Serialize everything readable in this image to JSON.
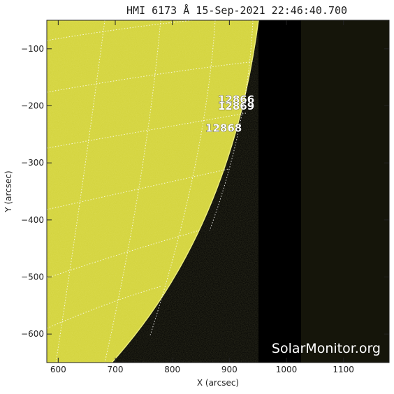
{
  "title": "HMI 6173 Å 15-Sep-2021 22:46:40.700",
  "x_axis": {
    "label": "X (arcsec)",
    "ticks": [
      600,
      700,
      800,
      900,
      1000,
      1100
    ],
    "range": [
      580,
      1180
    ]
  },
  "y_axis": {
    "label": "Y (arcsec)",
    "ticks": [
      -100,
      -200,
      -300,
      -400,
      -500,
      -600
    ],
    "range": [
      -650,
      -50
    ]
  },
  "regions": [
    {
      "number": "12866",
      "x": 880,
      "y": -195
    },
    {
      "number": "12869",
      "x": 880,
      "y": -207
    },
    {
      "number": "12868",
      "x": 858,
      "y": -245
    }
  ],
  "watermark": "SolarMonitor.org",
  "colors": {
    "disk": "#d2d23a",
    "space": "#000000",
    "outer_band": "#15150a",
    "grid": "#ffffff"
  }
}
